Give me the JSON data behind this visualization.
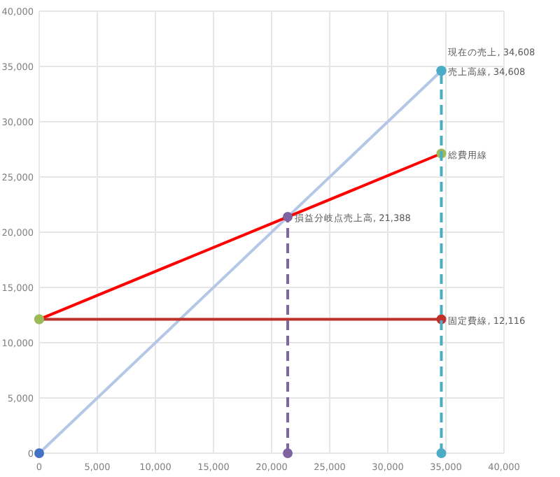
{
  "chart_data": {
    "type": "line",
    "xlim": [
      0,
      40000
    ],
    "ylim": [
      0,
      40000
    ],
    "xticks": [
      0,
      {
        "value": 5000,
        "label": "5,000"
      },
      {
        "value": 10000,
        "label": "10,000"
      },
      {
        "value": 15000,
        "label": "15,000"
      },
      {
        "value": 20000,
        "label": "20,000"
      },
      {
        "value": 25000,
        "label": "25,000"
      },
      {
        "value": 30000,
        "label": "30,000"
      },
      {
        "value": 35000,
        "label": "35,000"
      },
      {
        "value": 40000,
        "label": "40,000"
      }
    ],
    "yticks": [
      0,
      {
        "value": 5000,
        "label": "5,000"
      },
      {
        "value": 10000,
        "label": "10,000"
      },
      {
        "value": 15000,
        "label": "15,000"
      },
      {
        "value": 20000,
        "label": "20,000"
      },
      {
        "value": 25000,
        "label": "25,000"
      },
      {
        "value": 30000,
        "label": "30,000"
      },
      {
        "value": 35000,
        "label": "35,000"
      },
      {
        "value": 40000,
        "label": "40,000"
      }
    ],
    "grid": true,
    "series": [
      {
        "color": "#b4c7e7",
        "x": [
          0,
          34608
        ],
        "values": [
          0,
          34608
        ],
        "marker": "circle",
        "colors": [
          "#4472c4",
          "#4bacc6"
        ],
        "value_labels": [
          null,
          "売上高線, 34,608"
        ]
      },
      {
        "color": "#ff0000",
        "x": [
          0,
          34608
        ],
        "values": [
          12116,
          27120
        ],
        "marker": "circle",
        "colors": [
          "#9bbb59",
          "#9bbb59"
        ],
        "value_labels": [
          null,
          "総費用線"
        ]
      },
      {
        "color": "#c0302b",
        "x": [
          0,
          34608
        ],
        "values": [
          12116,
          12116
        ],
        "marker": "circle",
        "colors": [
          "#9bbb59",
          "#c0302b"
        ],
        "value_labels": [
          null,
          "固定費線, 12,116"
        ]
      },
      {
        "color": "#8064a2",
        "x": [
          21388,
          21388
        ],
        "values": [
          0,
          21388
        ],
        "marker": "circle",
        "line_style": "dashed",
        "colors": [
          "#8064a2",
          "#8064a2"
        ],
        "value_labels": [
          null,
          "損益分岐点売上高, 21,388"
        ]
      },
      {
        "color": "#4bacc6",
        "x": [
          34608,
          34608
        ],
        "values": [
          0,
          34608
        ],
        "marker": "circle",
        "line_style": "dashed",
        "colors": [
          "#4bacc6",
          "#4bacc6"
        ],
        "value_labels": [
          null,
          "現在の売上, 34,608"
        ]
      }
    ]
  }
}
